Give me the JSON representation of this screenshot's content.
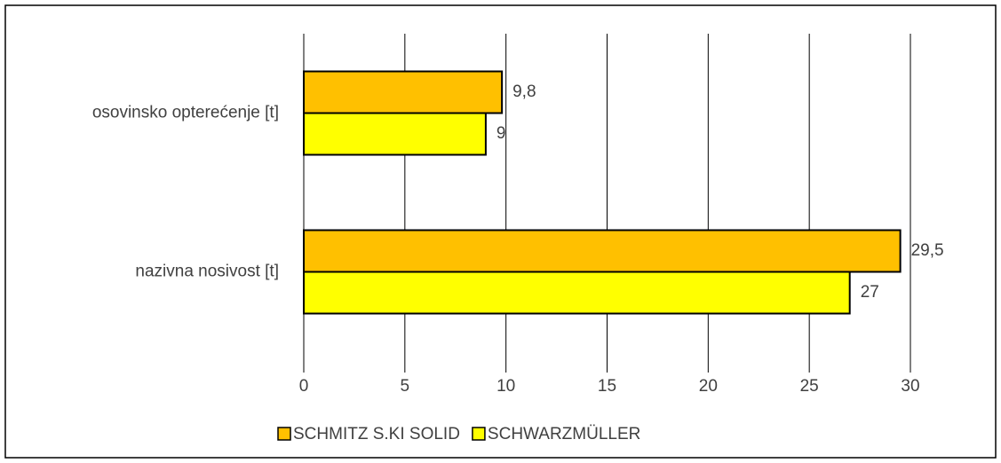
{
  "chart_data": {
    "type": "bar",
    "orientation": "horizontal",
    "categories": [
      "osovinsko opterećenje [t]",
      "nazivna nosivost [t]"
    ],
    "series": [
      {
        "name": "SCHMITZ S.KI SOLID",
        "color": "#FFC000",
        "values": [
          9.8,
          29.5
        ],
        "value_labels": [
          "9,8",
          "29,5"
        ]
      },
      {
        "name": "SCHWARZMÜLLER",
        "color": "#FFFF00",
        "values": [
          9,
          27
        ]
      }
    ],
    "xlim": [
      0,
      30
    ],
    "xticks": [
      0,
      5,
      10,
      15,
      20,
      25,
      30
    ],
    "grid": true,
    "legend": "bottom"
  }
}
